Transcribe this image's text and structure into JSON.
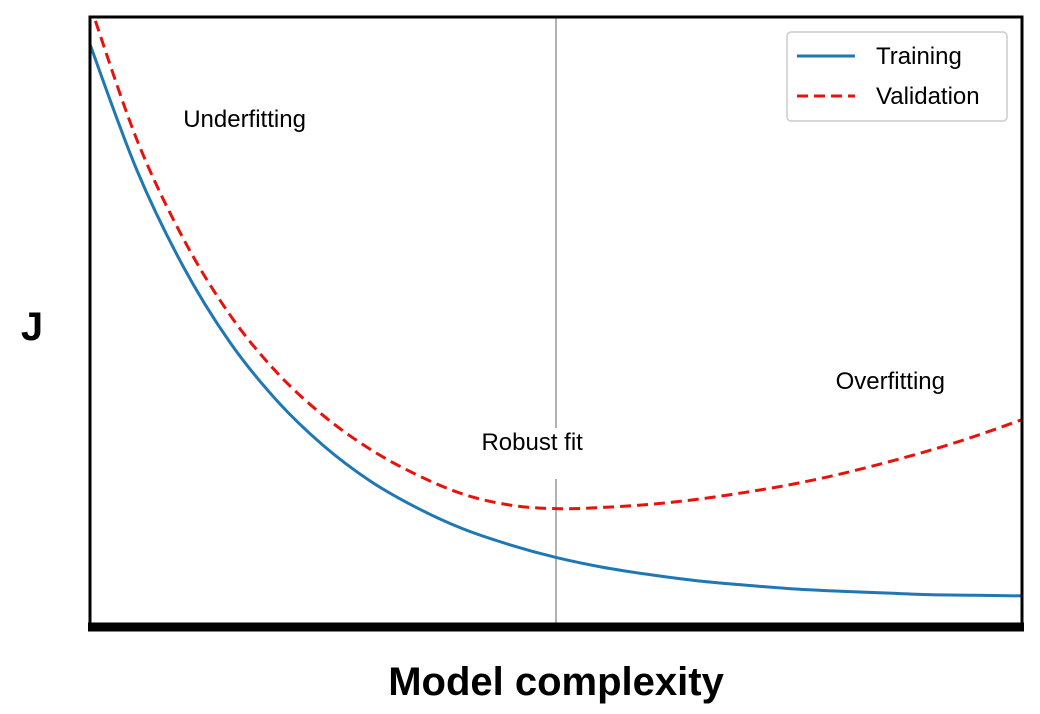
{
  "chart_data": {
    "type": "line",
    "title": "",
    "xlabel": "Model complexity",
    "ylabel": "J",
    "xlim": [
      0,
      1
    ],
    "ylim": [
      0,
      1
    ],
    "x_ticks": [],
    "y_ticks": [],
    "grid": false,
    "legend_position": "top-right",
    "series": [
      {
        "name": "Training",
        "color": "#1f77b4",
        "style": "solid",
        "x": [
          0.0,
          0.05,
          0.1,
          0.15,
          0.2,
          0.25,
          0.3,
          0.35,
          0.4,
          0.45,
          0.5,
          0.55,
          0.6,
          0.65,
          0.7,
          0.75,
          0.8,
          0.85,
          0.9,
          0.95,
          1.0
        ],
        "y": [
          0.955,
          0.75,
          0.591,
          0.467,
          0.372,
          0.298,
          0.24,
          0.196,
          0.161,
          0.135,
          0.114,
          0.098,
          0.086,
          0.076,
          0.069,
          0.063,
          0.059,
          0.056,
          0.053,
          0.052,
          0.051
        ]
      },
      {
        "name": "Validation",
        "color": "#e8120c",
        "style": "dashed",
        "x": [
          0.0,
          0.05,
          0.1,
          0.15,
          0.2,
          0.25,
          0.3,
          0.35,
          0.4,
          0.45,
          0.5,
          0.55,
          0.6,
          0.65,
          0.7,
          0.75,
          0.8,
          0.85,
          0.9,
          0.95,
          1.0
        ],
        "y": [
          1.02,
          0.8,
          0.637,
          0.512,
          0.418,
          0.347,
          0.292,
          0.25,
          0.218,
          0.2,
          0.194,
          0.196,
          0.201,
          0.209,
          0.22,
          0.233,
          0.249,
          0.268,
          0.289,
          0.313,
          0.34
        ]
      }
    ],
    "vline": {
      "x": 0.5,
      "color": "#999999"
    },
    "annotations": [
      {
        "text": "Underfitting",
        "x": 0.1,
        "y": 0.82
      },
      {
        "text": "Robust fit",
        "x": 0.42,
        "y": 0.29
      },
      {
        "text": "Overfitting",
        "x": 0.8,
        "y": 0.39
      }
    ]
  }
}
